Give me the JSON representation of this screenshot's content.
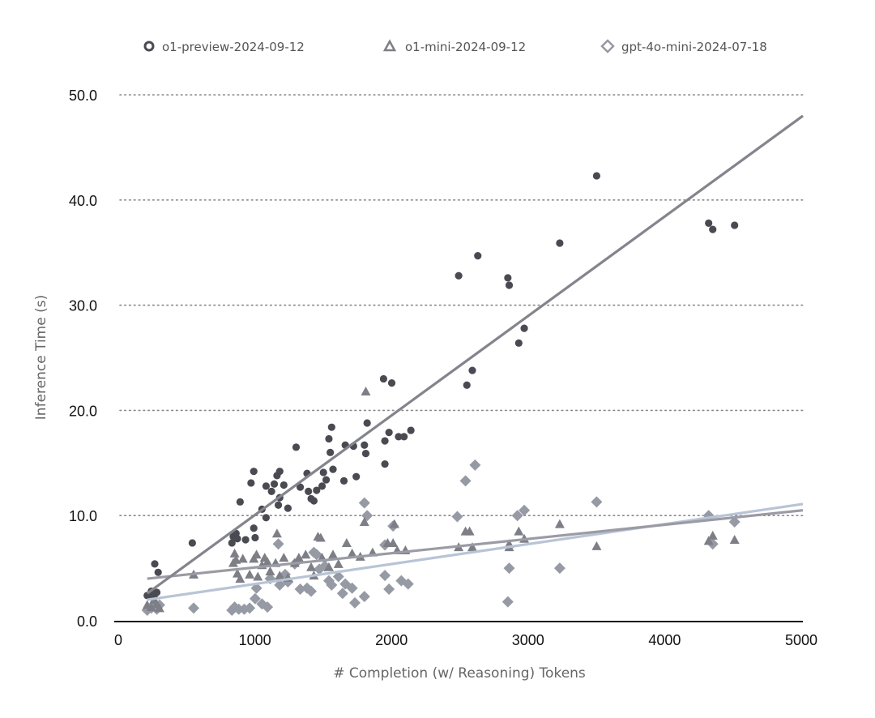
{
  "chart_data": {
    "type": "scatter",
    "title": "",
    "xlabel": "# Completion (w/ Reasoning) Tokens",
    "ylabel": "Inference Time (s)",
    "xlim": [
      0,
      5000
    ],
    "ylim": [
      0,
      50
    ],
    "xticks": [
      "0",
      "1000",
      "2000",
      "3000",
      "4000",
      "5000"
    ],
    "xtick_values": [
      0,
      1000,
      2000,
      3000,
      4000,
      5000
    ],
    "yticks": [
      "0.0",
      "10.0",
      "20.0",
      "30.0",
      "40.0",
      "50.0"
    ],
    "ytick_values": [
      0,
      10,
      20,
      30,
      40,
      50
    ],
    "grid": "horizontal-dotted",
    "legend_position": "top",
    "series": [
      {
        "name": "o1-preview-2024-09-12",
        "marker": "circle",
        "color": "#4a4a52",
        "trend_color": "#84848c",
        "trend": {
          "x": [
            200,
            5000
          ],
          "y": [
            2.6,
            48.0
          ]
        },
        "points": [
          [
            200,
            2.4
          ],
          [
            230,
            2.8
          ],
          [
            250,
            2.3
          ],
          [
            255,
            5.4
          ],
          [
            270,
            2.7
          ],
          [
            280,
            4.6
          ],
          [
            230,
            2.5
          ],
          [
            530,
            7.4
          ],
          [
            820,
            7.4
          ],
          [
            830,
            8.0
          ],
          [
            850,
            8.3
          ],
          [
            860,
            7.8
          ],
          [
            880,
            11.3
          ],
          [
            920,
            7.7
          ],
          [
            960,
            13.1
          ],
          [
            980,
            8.8
          ],
          [
            980,
            14.2
          ],
          [
            990,
            7.9
          ],
          [
            1040,
            10.6
          ],
          [
            1070,
            9.8
          ],
          [
            1070,
            12.8
          ],
          [
            1110,
            12.3
          ],
          [
            1130,
            13.0
          ],
          [
            1150,
            13.8
          ],
          [
            1160,
            11.0
          ],
          [
            1170,
            14.2
          ],
          [
            1170,
            11.7
          ],
          [
            1200,
            12.9
          ],
          [
            1230,
            10.7
          ],
          [
            1290,
            16.5
          ],
          [
            1320,
            12.7
          ],
          [
            1370,
            14.0
          ],
          [
            1380,
            12.3
          ],
          [
            1400,
            11.6
          ],
          [
            1420,
            11.4
          ],
          [
            1440,
            12.4
          ],
          [
            1480,
            12.8
          ],
          [
            1490,
            14.1
          ],
          [
            1510,
            13.4
          ],
          [
            1530,
            17.3
          ],
          [
            1540,
            16.0
          ],
          [
            1550,
            18.4
          ],
          [
            1560,
            14.4
          ],
          [
            1640,
            13.3
          ],
          [
            1650,
            16.7
          ],
          [
            1710,
            16.6
          ],
          [
            1730,
            13.7
          ],
          [
            1790,
            16.7
          ],
          [
            1800,
            15.9
          ],
          [
            1810,
            18.8
          ],
          [
            1930,
            23.0
          ],
          [
            1940,
            17.1
          ],
          [
            1940,
            14.9
          ],
          [
            1970,
            17.9
          ],
          [
            1990,
            22.6
          ],
          [
            2040,
            17.5
          ],
          [
            2080,
            17.5
          ],
          [
            2130,
            18.1
          ],
          [
            2480,
            32.8
          ],
          [
            2540,
            22.4
          ],
          [
            2580,
            23.8
          ],
          [
            2620,
            34.7
          ],
          [
            2840,
            32.6
          ],
          [
            2850,
            31.9
          ],
          [
            2920,
            26.4
          ],
          [
            2960,
            27.8
          ],
          [
            3220,
            35.9
          ],
          [
            3490,
            42.3
          ],
          [
            4310,
            37.8
          ],
          [
            4340,
            37.2
          ],
          [
            4500,
            37.6
          ]
        ]
      },
      {
        "name": "o1-mini-2024-09-12",
        "marker": "triangle",
        "color": "#7d7e86",
        "trend_color": "#9a9ba4",
        "trend": {
          "x": [
            200,
            5000
          ],
          "y": [
            4.0,
            10.5
          ]
        },
        "points": [
          [
            200,
            1.5
          ],
          [
            230,
            1.3
          ],
          [
            250,
            2.0
          ],
          [
            270,
            1.6
          ],
          [
            290,
            1.2
          ],
          [
            540,
            4.4
          ],
          [
            830,
            5.5
          ],
          [
            840,
            6.4
          ],
          [
            850,
            5.8
          ],
          [
            860,
            4.5
          ],
          [
            880,
            4.0
          ],
          [
            900,
            5.9
          ],
          [
            950,
            4.4
          ],
          [
            980,
            5.9
          ],
          [
            1000,
            6.3
          ],
          [
            1010,
            4.2
          ],
          [
            1040,
            5.3
          ],
          [
            1060,
            6.0
          ],
          [
            1080,
            5.6
          ],
          [
            1100,
            4.7
          ],
          [
            1140,
            5.5
          ],
          [
            1150,
            8.3
          ],
          [
            1170,
            4.3
          ],
          [
            1200,
            6.0
          ],
          [
            1230,
            4.1
          ],
          [
            1280,
            5.5
          ],
          [
            1310,
            6.0
          ],
          [
            1360,
            6.3
          ],
          [
            1400,
            5.1
          ],
          [
            1420,
            4.3
          ],
          [
            1450,
            8.0
          ],
          [
            1470,
            7.9
          ],
          [
            1480,
            6.0
          ],
          [
            1530,
            5.1
          ],
          [
            1560,
            6.3
          ],
          [
            1600,
            5.4
          ],
          [
            1660,
            7.4
          ],
          [
            1700,
            6.4
          ],
          [
            1760,
            6.1
          ],
          [
            1790,
            9.4
          ],
          [
            1800,
            21.8
          ],
          [
            1850,
            6.5
          ],
          [
            1960,
            7.4
          ],
          [
            2000,
            7.4
          ],
          [
            2010,
            9.2
          ],
          [
            2030,
            6.7
          ],
          [
            2090,
            6.7
          ],
          [
            2480,
            7.0
          ],
          [
            2530,
            8.5
          ],
          [
            2560,
            8.5
          ],
          [
            2580,
            7.0
          ],
          [
            2850,
            7.0
          ],
          [
            2850,
            7.3
          ],
          [
            2920,
            8.5
          ],
          [
            2960,
            7.8
          ],
          [
            3220,
            9.2
          ],
          [
            3490,
            7.1
          ],
          [
            4310,
            7.6
          ],
          [
            4340,
            8.1
          ],
          [
            4500,
            7.7
          ]
        ]
      },
      {
        "name": "gpt-4o-mini-2024-07-18",
        "marker": "diamond",
        "color": "#969aa4",
        "trend_color": "#b8c4d6",
        "trend": {
          "x": [
            200,
            5000
          ],
          "y": [
            2.0,
            11.1
          ]
        },
        "points": [
          [
            200,
            1.0
          ],
          [
            230,
            1.2
          ],
          [
            250,
            1.4
          ],
          [
            270,
            1.1
          ],
          [
            290,
            1.5
          ],
          [
            540,
            1.2
          ],
          [
            820,
            1.0
          ],
          [
            840,
            1.3
          ],
          [
            870,
            1.1
          ],
          [
            910,
            1.1
          ],
          [
            950,
            1.2
          ],
          [
            990,
            2.1
          ],
          [
            1000,
            3.1
          ],
          [
            1040,
            1.6
          ],
          [
            1080,
            1.3
          ],
          [
            1100,
            4.0
          ],
          [
            1160,
            7.3
          ],
          [
            1170,
            3.4
          ],
          [
            1210,
            4.4
          ],
          [
            1230,
            3.7
          ],
          [
            1280,
            5.4
          ],
          [
            1320,
            3.0
          ],
          [
            1370,
            3.1
          ],
          [
            1400,
            2.8
          ],
          [
            1420,
            6.5
          ],
          [
            1440,
            6.3
          ],
          [
            1460,
            4.9
          ],
          [
            1500,
            5.2
          ],
          [
            1530,
            3.8
          ],
          [
            1550,
            3.4
          ],
          [
            1600,
            4.2
          ],
          [
            1630,
            2.6
          ],
          [
            1650,
            3.5
          ],
          [
            1700,
            3.1
          ],
          [
            1720,
            1.7
          ],
          [
            1790,
            2.3
          ],
          [
            1790,
            11.2
          ],
          [
            1810,
            10.0
          ],
          [
            1940,
            7.2
          ],
          [
            1940,
            4.3
          ],
          [
            1970,
            3.0
          ],
          [
            2000,
            9.0
          ],
          [
            2060,
            3.8
          ],
          [
            2110,
            3.5
          ],
          [
            2470,
            9.9
          ],
          [
            2530,
            13.3
          ],
          [
            2600,
            14.8
          ],
          [
            2840,
            1.8
          ],
          [
            2850,
            5.0
          ],
          [
            2910,
            10.0
          ],
          [
            2960,
            10.5
          ],
          [
            3220,
            5.0
          ],
          [
            3490,
            11.3
          ],
          [
            4310,
            10.0
          ],
          [
            4340,
            7.3
          ],
          [
            4500,
            9.4
          ]
        ]
      }
    ]
  }
}
